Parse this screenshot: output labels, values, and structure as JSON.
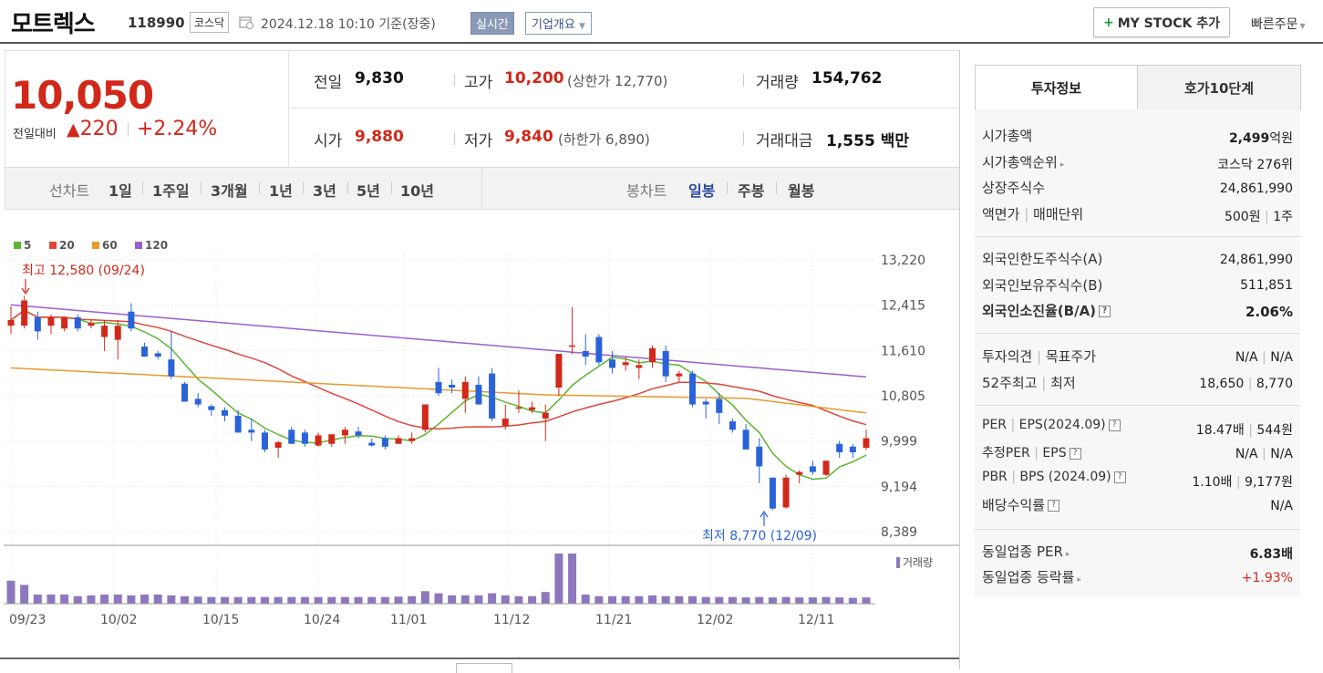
{
  "header": {
    "name": "모트렉스",
    "code": "118990",
    "market": "코스닥",
    "date": "2024.12.18 10:10 기준(장중)",
    "realtime": "실시간",
    "company_info": "기업개요",
    "mystock": "MY STOCK 추가",
    "quick_order": "빠른주문"
  },
  "price": {
    "current": "10,050",
    "change_label": "전일대비",
    "change_amount": "220",
    "change_rate": "+2.24%"
  },
  "stats": {
    "prev_label": "전일",
    "prev": "9,830",
    "open_label": "시가",
    "open": "9,880",
    "high_label": "고가",
    "high": "10,200",
    "upper_limit": "(상한가 12,770)",
    "low_label": "저가",
    "low": "9,840",
    "lower_limit": "(하한가 6,890)",
    "volume_label": "거래량",
    "volume": "154,762",
    "amount_label": "거래대금",
    "amount": "1,555",
    "amount_unit": "백만"
  },
  "period_bar": {
    "line_label": "선차트",
    "line_periods": [
      "1일",
      "1주일",
      "3개월",
      "1년",
      "3년",
      "5년",
      "10년"
    ],
    "candle_label": "봉차트",
    "candle_periods": [
      "일봉",
      "주봉",
      "월봉"
    ],
    "active_candle": "일봉"
  },
  "chart_data": {
    "type": "candlestick",
    "legend": [
      {
        "name": "5",
        "color": "#5cb531"
      },
      {
        "name": "20",
        "color": "#e0463a"
      },
      {
        "name": "60",
        "color": "#e89a2c"
      },
      {
        "name": "120",
        "color": "#9b5fd1"
      }
    ],
    "y_ticks": [
      "13,220",
      "12,415",
      "11,610",
      "10,805",
      "9,999",
      "9,194",
      "8,389"
    ],
    "ylim": [
      8389,
      13220
    ],
    "x_ticks": [
      "09/23",
      "10/02",
      "10/15",
      "10/24",
      "11/01",
      "11/12",
      "11/21",
      "12/02",
      "12/11"
    ],
    "high_annotation": "최고 12,580 (09/24)",
    "low_annotation": "최저 8,770 (12/09)",
    "volume_label": "거래량",
    "up_color": "#d2281a",
    "down_color": "#2a63d9",
    "candles": [
      {
        "o": 12050,
        "h": 12400,
        "l": 11900,
        "c": 12150
      },
      {
        "o": 12050,
        "h": 12580,
        "l": 12000,
        "c": 12500
      },
      {
        "o": 12200,
        "h": 12300,
        "l": 11800,
        "c": 11950
      },
      {
        "o": 12050,
        "h": 12250,
        "l": 11900,
        "c": 12200
      },
      {
        "o": 12000,
        "h": 12200,
        "l": 11950,
        "c": 12200
      },
      {
        "o": 12200,
        "h": 12250,
        "l": 11950,
        "c": 12000
      },
      {
        "o": 12050,
        "h": 12150,
        "l": 12000,
        "c": 12100
      },
      {
        "o": 11850,
        "h": 12150,
        "l": 11600,
        "c": 12050
      },
      {
        "o": 11800,
        "h": 12150,
        "l": 11450,
        "c": 12050
      },
      {
        "o": 12300,
        "h": 12450,
        "l": 11950,
        "c": 12000
      },
      {
        "o": 11680,
        "h": 11750,
        "l": 11500,
        "c": 11500
      },
      {
        "o": 11560,
        "h": 11600,
        "l": 11450,
        "c": 11500
      },
      {
        "o": 11450,
        "h": 11950,
        "l": 11100,
        "c": 11150
      },
      {
        "o": 11020,
        "h": 11050,
        "l": 10700,
        "c": 10700
      },
      {
        "o": 10750,
        "h": 10850,
        "l": 10600,
        "c": 10650
      },
      {
        "o": 10620,
        "h": 10650,
        "l": 10450,
        "c": 10550
      },
      {
        "o": 10550,
        "h": 10600,
        "l": 10350,
        "c": 10450
      },
      {
        "o": 10450,
        "h": 10550,
        "l": 10150,
        "c": 10150
      },
      {
        "o": 10200,
        "h": 10400,
        "l": 10000,
        "c": 10150
      },
      {
        "o": 10150,
        "h": 10200,
        "l": 9800,
        "c": 9850
      },
      {
        "o": 9880,
        "h": 10000,
        "l": 9700,
        "c": 9980
      },
      {
        "o": 10200,
        "h": 10250,
        "l": 9950,
        "c": 9950
      },
      {
        "o": 10150,
        "h": 10200,
        "l": 9900,
        "c": 9950
      },
      {
        "o": 9920,
        "h": 10150,
        "l": 9900,
        "c": 10100
      },
      {
        "o": 9950,
        "h": 10100,
        "l": 9900,
        "c": 10120
      },
      {
        "o": 10100,
        "h": 10250,
        "l": 9950,
        "c": 10200
      },
      {
        "o": 10170,
        "h": 10250,
        "l": 10050,
        "c": 10100
      },
      {
        "o": 9970,
        "h": 10050,
        "l": 9900,
        "c": 9920
      },
      {
        "o": 10050,
        "h": 10100,
        "l": 9850,
        "c": 9900
      },
      {
        "o": 9950,
        "h": 10100,
        "l": 9950,
        "c": 10050
      },
      {
        "o": 10000,
        "h": 10150,
        "l": 9950,
        "c": 10050
      },
      {
        "o": 10200,
        "h": 10650,
        "l": 10150,
        "c": 10650
      },
      {
        "o": 11050,
        "h": 11300,
        "l": 10800,
        "c": 10850
      },
      {
        "o": 11000,
        "h": 11100,
        "l": 10850,
        "c": 10950
      },
      {
        "o": 10750,
        "h": 11150,
        "l": 10500,
        "c": 11050
      },
      {
        "o": 11000,
        "h": 11150,
        "l": 10650,
        "c": 10650
      },
      {
        "o": 11200,
        "h": 11300,
        "l": 10350,
        "c": 10400
      },
      {
        "o": 10270,
        "h": 10650,
        "l": 10200,
        "c": 10400
      },
      {
        "o": 10600,
        "h": 10900,
        "l": 10500,
        "c": 10600
      },
      {
        "o": 10550,
        "h": 10700,
        "l": 10500,
        "c": 10600
      },
      {
        "o": 10400,
        "h": 10650,
        "l": 10000,
        "c": 10500
      },
      {
        "o": 10950,
        "h": 11550,
        "l": 10800,
        "c": 11550
      },
      {
        "o": 11700,
        "h": 12380,
        "l": 11550,
        "c": 11700
      },
      {
        "o": 11600,
        "h": 11900,
        "l": 11350,
        "c": 11500
      },
      {
        "o": 11850,
        "h": 11900,
        "l": 11350,
        "c": 11400
      },
      {
        "o": 11450,
        "h": 11600,
        "l": 11200,
        "c": 11300
      },
      {
        "o": 11350,
        "h": 11500,
        "l": 11250,
        "c": 11400
      },
      {
        "o": 11300,
        "h": 11450,
        "l": 11100,
        "c": 11350
      },
      {
        "o": 11400,
        "h": 11700,
        "l": 11300,
        "c": 11650
      },
      {
        "o": 11600,
        "h": 11700,
        "l": 11050,
        "c": 11150
      },
      {
        "o": 11150,
        "h": 11250,
        "l": 11050,
        "c": 11200
      },
      {
        "o": 11200,
        "h": 11250,
        "l": 10600,
        "c": 10650
      },
      {
        "o": 10700,
        "h": 10750,
        "l": 10400,
        "c": 10650
      },
      {
        "o": 10750,
        "h": 10850,
        "l": 10300,
        "c": 10500
      },
      {
        "o": 10350,
        "h": 10400,
        "l": 10150,
        "c": 10200
      },
      {
        "o": 10200,
        "h": 10300,
        "l": 9850,
        "c": 9850
      },
      {
        "o": 9900,
        "h": 10050,
        "l": 9250,
        "c": 9550
      },
      {
        "o": 9350,
        "h": 9350,
        "l": 8770,
        "c": 8800
      },
      {
        "o": 8820,
        "h": 9400,
        "l": 8800,
        "c": 9350
      },
      {
        "o": 9400,
        "h": 9480,
        "l": 9250,
        "c": 9450
      },
      {
        "o": 9550,
        "h": 9650,
        "l": 9400,
        "c": 9450
      },
      {
        "o": 9400,
        "h": 9650,
        "l": 9380,
        "c": 9650
      },
      {
        "o": 9950,
        "h": 10000,
        "l": 9700,
        "c": 9800
      },
      {
        "o": 9900,
        "h": 9950,
        "l": 9700,
        "c": 9800
      },
      {
        "o": 9880,
        "h": 10200,
        "l": 9840,
        "c": 10050
      }
    ],
    "volumes": [
      55,
      45,
      22,
      22,
      22,
      18,
      20,
      22,
      22,
      20,
      22,
      22,
      20,
      18,
      17,
      16,
      16,
      16,
      16,
      16,
      16,
      16,
      16,
      16,
      16,
      16,
      16,
      16,
      16,
      17,
      18,
      30,
      25,
      20,
      20,
      20,
      25,
      20,
      18,
      18,
      28,
      120,
      120,
      22,
      18,
      18,
      18,
      18,
      20,
      18,
      18,
      18,
      16,
      16,
      16,
      15,
      16,
      15,
      16,
      15,
      15,
      16,
      15,
      14,
      15
    ]
  },
  "tabs": {
    "invest": "투자정보",
    "hoga": "호가10단계"
  },
  "info": {
    "market_cap_label": "시가총액",
    "market_cap": "2,499",
    "market_cap_unit": "억원",
    "rank_label": "시가총액순위",
    "rank": "코스닥 276위",
    "shares_label": "상장주식수",
    "shares": "24,861,990",
    "face_label": "액면가",
    "unit_label": "매매단위",
    "face": "500원",
    "unit": "1주",
    "foreign_limit_label": "외국인한도주식수(A)",
    "foreign_limit": "24,861,990",
    "foreign_hold_label": "외국인보유주식수(B)",
    "foreign_hold": "511,851",
    "foreign_rate_label": "외국인소진율(B/A)",
    "foreign_rate": "2.06%",
    "opinion_label": "투자의견",
    "target_label": "목표주가",
    "opinion": "N/A",
    "target": "N/A",
    "high52_label": "52주최고",
    "low52_label": "최저",
    "high52": "18,650",
    "low52": "8,770",
    "per_label": "PER",
    "eps_label": "EPS(2024.09)",
    "per": "18.47배",
    "eps": "544원",
    "est_per_label": "추정PER",
    "est_eps_label": "EPS",
    "est_per": "N/A",
    "est_eps": "N/A",
    "pbr_label": "PBR",
    "bps_label": "BPS (2024.09)",
    "pbr": "1.10배",
    "bps": "9,177원",
    "div_label": "배당수익률",
    "div": "N/A",
    "sector_per_label": "동일업종 PER",
    "sector_per": "6.83배",
    "sector_rate_label": "동일업종 등락률",
    "sector_rate": "+1.93%"
  }
}
